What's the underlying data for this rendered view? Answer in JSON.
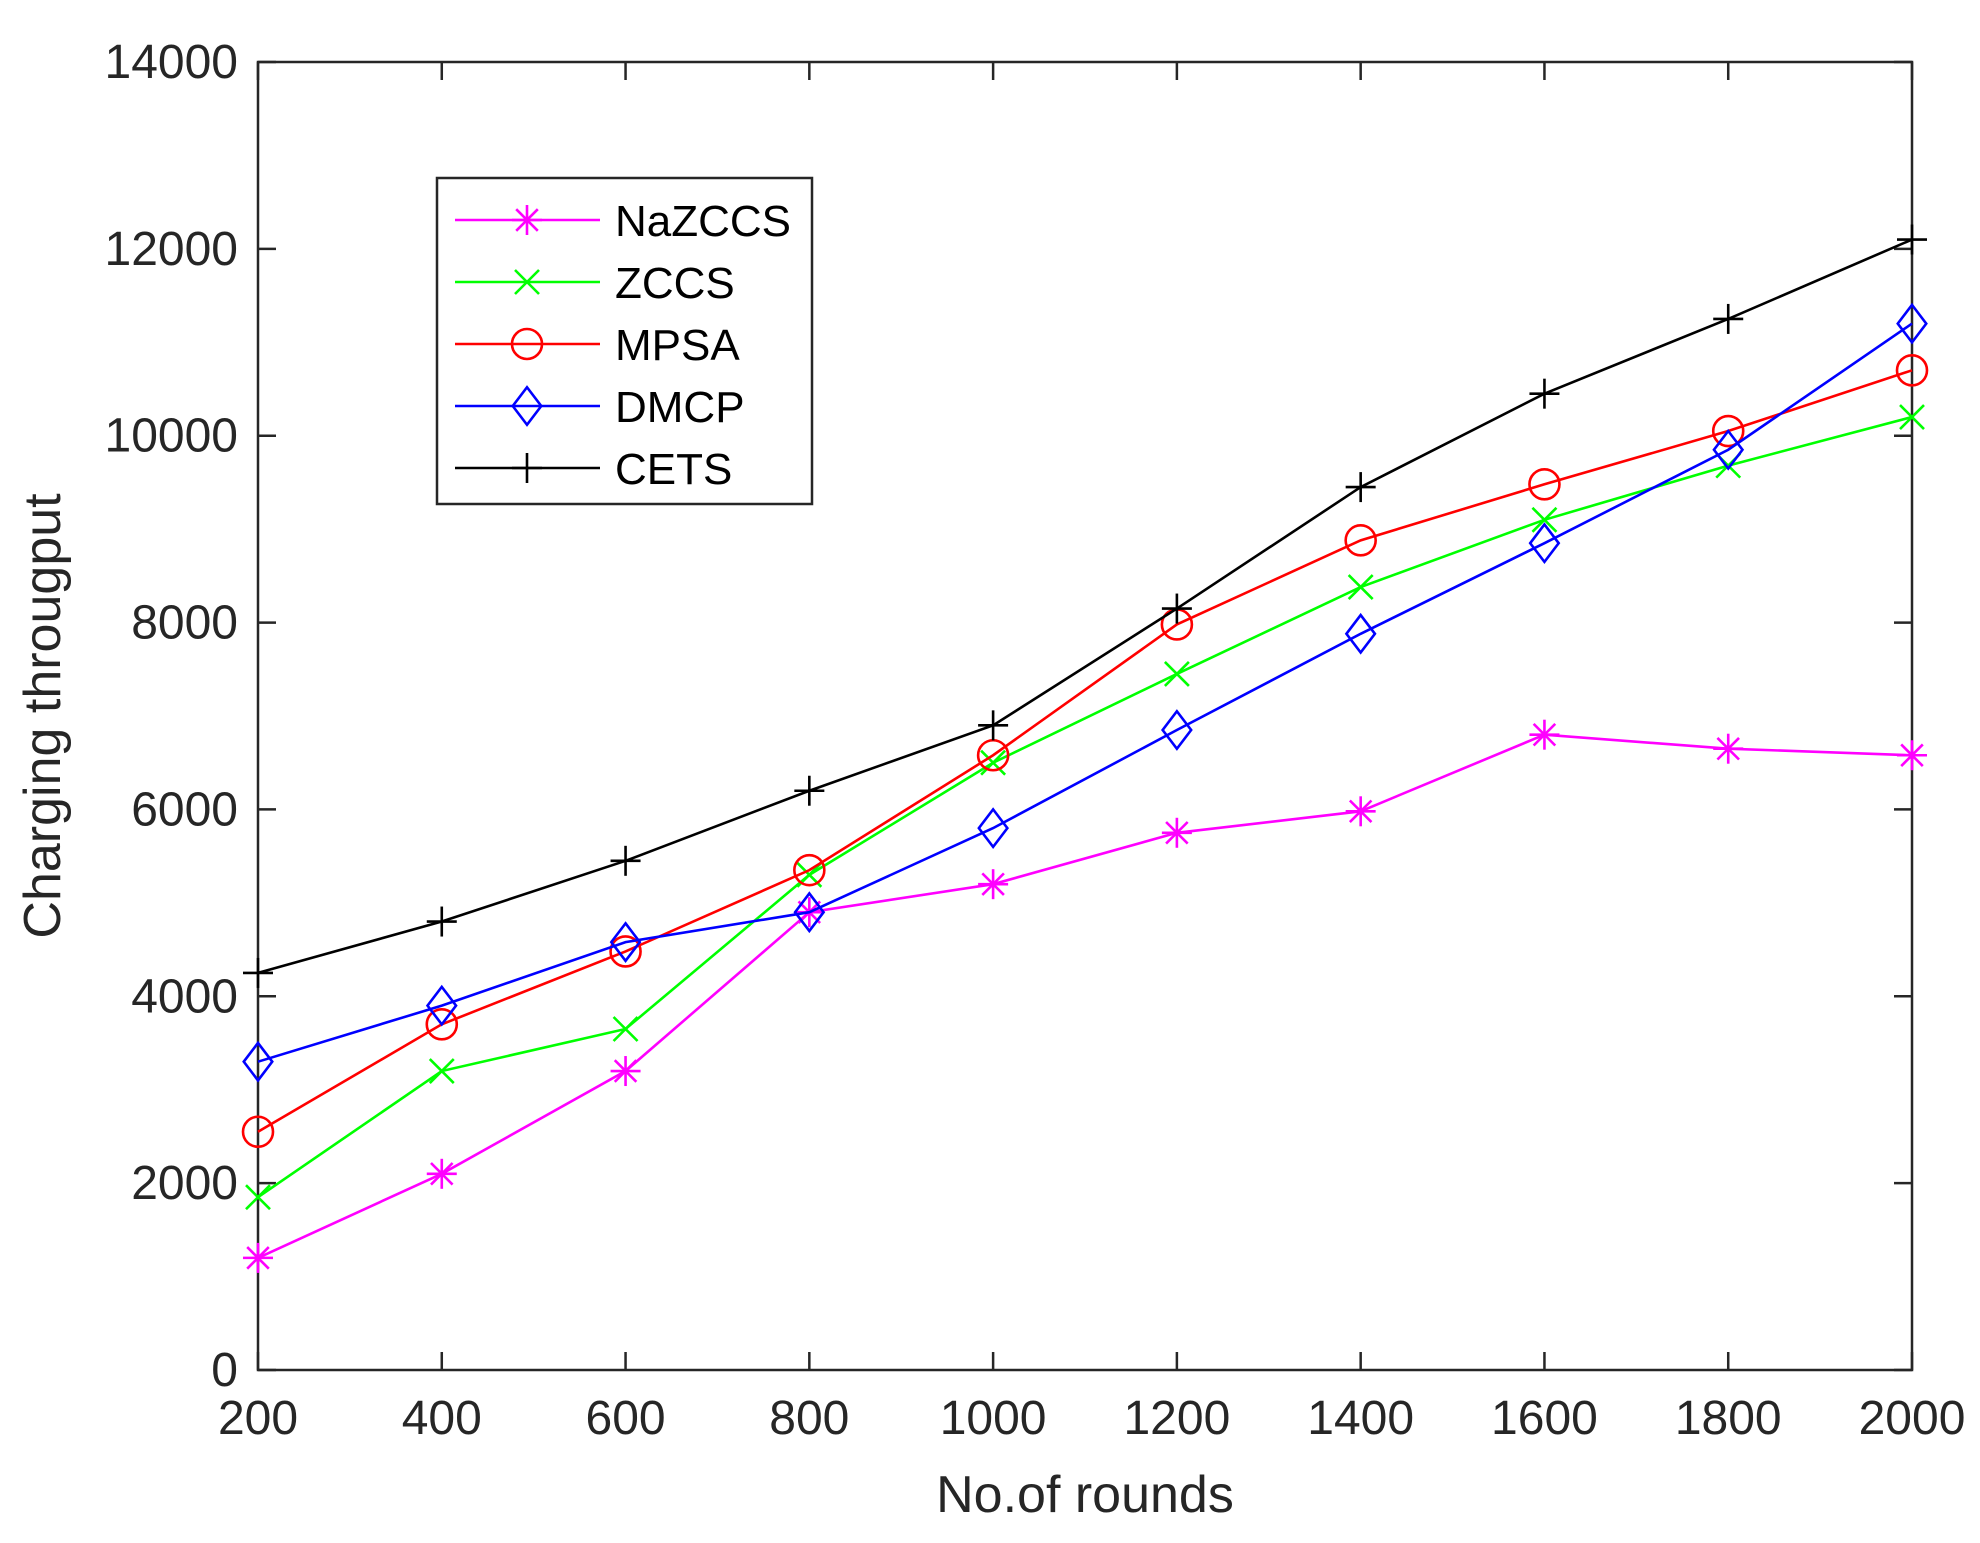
{
  "chart_data": {
    "type": "line",
    "title": "",
    "xlabel": "No.of rounds",
    "ylabel": "Charging througput",
    "xlim": [
      200,
      2000
    ],
    "ylim": [
      0,
      14000
    ],
    "x": [
      200,
      400,
      600,
      800,
      1000,
      1200,
      1400,
      1600,
      1800,
      2000
    ],
    "xticks": [
      "200",
      "400",
      "600",
      "800",
      "1000",
      "1200",
      "1400",
      "1600",
      "1800",
      "2000"
    ],
    "yticks": [
      "0",
      "2000",
      "4000",
      "6000",
      "8000",
      "10000",
      "12000",
      "14000"
    ],
    "legend_position": "upper-left",
    "grid": false,
    "series": [
      {
        "name": "NaZCCS",
        "color": "#ff00ff",
        "marker": "asterisk",
        "values": [
          1200,
          2100,
          3200,
          4900,
          5200,
          5750,
          5980,
          6800,
          6650,
          6580
        ]
      },
      {
        "name": "ZCCS",
        "color": "#00ff00",
        "marker": "x",
        "values": [
          1850,
          3200,
          3650,
          5300,
          6500,
          7450,
          8380,
          9100,
          9680,
          10200
        ]
      },
      {
        "name": "MPSA",
        "color": "#ff0000",
        "marker": "circle",
        "values": [
          2550,
          3700,
          4480,
          5350,
          6580,
          7980,
          8880,
          9480,
          10050,
          10700
        ]
      },
      {
        "name": "DMCP",
        "color": "#0000ff",
        "marker": "diamond",
        "values": [
          3300,
          3900,
          4580,
          4900,
          5800,
          6850,
          7880,
          8850,
          9850,
          11200
        ]
      },
      {
        "name": "CETS",
        "color": "#000000",
        "marker": "plus",
        "values": [
          4250,
          4800,
          5450,
          6200,
          6900,
          8150,
          9450,
          10450,
          11250,
          12100
        ]
      }
    ]
  }
}
